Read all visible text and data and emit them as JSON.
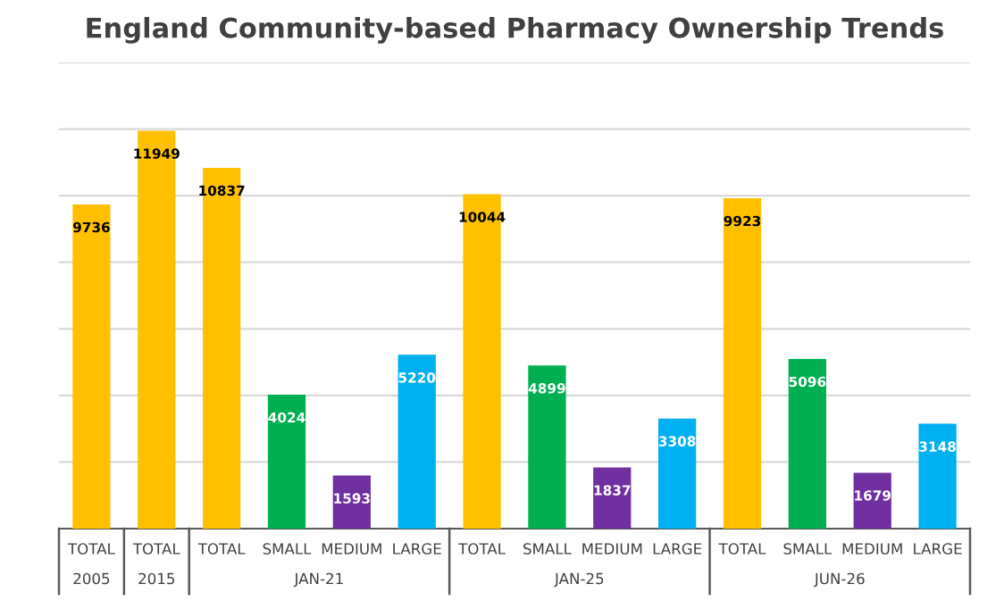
{
  "chart_data": {
    "type": "bar",
    "title": "England Community-based Pharmacy Ownership Trends",
    "categories": [
      "TOTAL",
      "TOTAL",
      "TOTAL",
      "SMALL",
      "MEDIUM",
      "LARGE",
      "TOTAL",
      "SMALL",
      "MEDIUM",
      "LARGE",
      "TOTAL",
      "SMALL",
      "MEDIUM",
      "LARGE"
    ],
    "values": [
      9736,
      11949,
      10837,
      4024,
      1593,
      5220,
      10044,
      4899,
      1837,
      3308,
      9923,
      5096,
      1679,
      3148
    ],
    "colors": [
      "#ffc000",
      "#ffc000",
      "#ffc000",
      "#00b050",
      "#7030a0",
      "#00b0f0",
      "#ffc000",
      "#00b050",
      "#7030a0",
      "#00b0f0",
      "#ffc000",
      "#00b050",
      "#7030a0",
      "#00b0f0"
    ],
    "annotations": [
      "2005",
      "2015",
      "JAN-21",
      "JAN-25",
      "JUN-26"
    ],
    "ylim": [
      0,
      14000
    ],
    "yticks": [
      {
        "value": 0,
        "label": null
      },
      {
        "value": 2000,
        "label": null
      },
      {
        "value": 4000,
        "label": null
      },
      {
        "value": 6000,
        "label": null
      },
      {
        "value": 8000,
        "label": null
      },
      {
        "value": 10000,
        "label": null
      },
      {
        "value": 12000,
        "label": null
      },
      {
        "value": 14000,
        "label": null
      }
    ],
    "grid": "y",
    "tick_labels": "x",
    "data_labels": true
  }
}
